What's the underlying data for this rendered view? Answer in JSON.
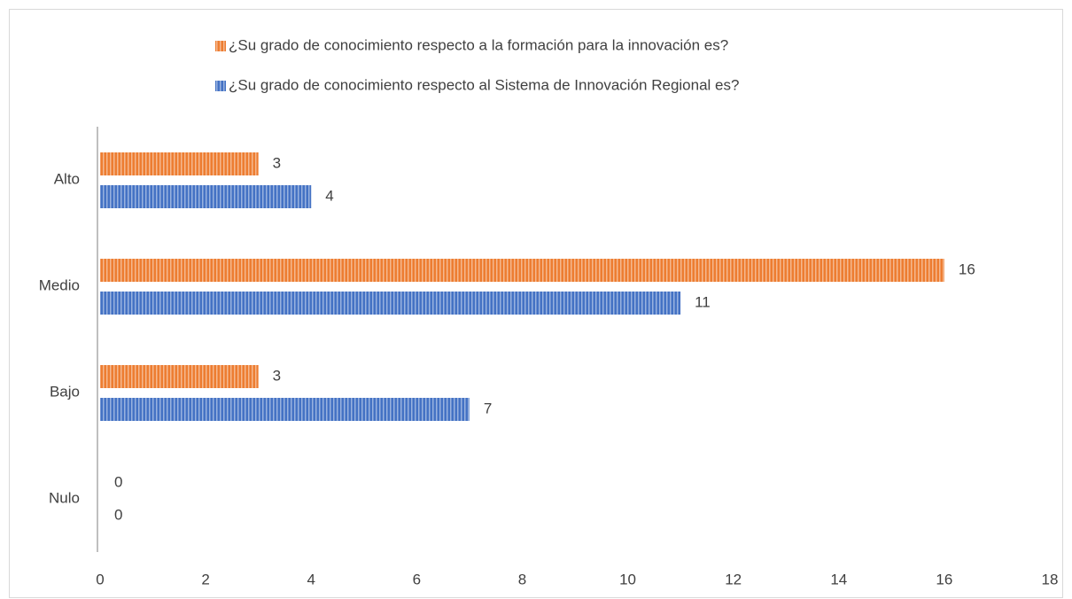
{
  "chart_data": {
    "type": "hbar",
    "categories": [
      "Nulo",
      "Bajo",
      "Medio",
      "Alto"
    ],
    "series": [
      {
        "name": "¿Su grado de conocimiento respecto a la formación para la innovación es?",
        "color": "#ed7d31",
        "values": [
          0,
          3,
          16,
          3
        ]
      },
      {
        "name": "¿Su grado de conocimiento respecto al Sistema de Innovación Regional es?",
        "color": "#4472c4",
        "values": [
          0,
          7,
          11,
          4
        ]
      }
    ],
    "xlim": [
      0,
      18
    ],
    "xticks": [
      0,
      2,
      4,
      6,
      8,
      10,
      12,
      14,
      16,
      18
    ],
    "grid": false,
    "legend": "top",
    "pattern": "vertical-stripes"
  }
}
